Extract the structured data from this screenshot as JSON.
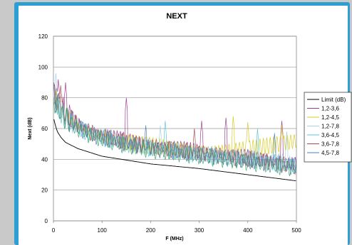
{
  "chart_data": {
    "type": "line",
    "title": "NEXT",
    "xlabel": "F (MHz)",
    "ylabel": "Next (dB)",
    "xlim": [
      0,
      500
    ],
    "ylim": [
      0,
      120
    ],
    "x_ticks": [
      "0",
      "100",
      "200",
      "300",
      "400",
      "500"
    ],
    "y_ticks": [
      "0",
      "20",
      "40",
      "60",
      "80",
      "100",
      "120"
    ],
    "grid": "horizontal",
    "legend_position": "right",
    "series": [
      {
        "name": "Limit (dB)",
        "color": "#000000",
        "kind": "limit",
        "x": [
          1,
          4,
          8,
          16,
          25,
          50,
          100,
          150,
          200,
          250,
          300,
          350,
          400,
          450,
          500
        ],
        "values": [
          66,
          62,
          58,
          54,
          51,
          47,
          42,
          39.5,
          37,
          35.5,
          34,
          32,
          30,
          28,
          26
        ]
      },
      {
        "name": "1,2-3,6",
        "color": "#9b3a8e",
        "kind": "meas",
        "x": [
          1,
          10,
          20,
          40,
          60,
          80,
          100,
          150,
          200,
          250,
          300,
          350,
          400,
          450,
          500
        ],
        "values": [
          85,
          76,
          73,
          66,
          61,
          58,
          56,
          52,
          49,
          47,
          45,
          43,
          41,
          39,
          37
        ],
        "peaks": [
          [
            10,
            92
          ],
          [
            25,
            90
          ],
          [
            150,
            80
          ],
          [
            305,
            65
          ],
          [
            355,
            67
          ],
          [
            470,
            65
          ]
        ]
      },
      {
        "name": "1,2-4,5",
        "color": "#d8c81c",
        "kind": "meas",
        "x": [
          1,
          10,
          20,
          40,
          60,
          80,
          100,
          150,
          200,
          250,
          300,
          350,
          400,
          450,
          500
        ],
        "values": [
          83,
          75,
          71,
          65,
          60,
          57,
          55,
          51,
          49,
          47,
          46,
          46,
          47,
          49,
          52
        ],
        "peaks": [
          [
            370,
            68
          ],
          [
            400,
            64
          ],
          [
            470,
            62
          ]
        ]
      },
      {
        "name": "1,2-7,8",
        "color": "#a8cfe0",
        "kind": "meas",
        "x": [
          1,
          10,
          20,
          40,
          60,
          80,
          100,
          150,
          200,
          250,
          300,
          350,
          400,
          450,
          500
        ],
        "values": [
          82,
          74,
          70,
          64,
          60,
          57,
          55,
          51,
          48,
          46,
          44,
          42,
          41,
          39,
          37
        ],
        "peaks": [
          [
            5,
            96
          ],
          [
            220,
            62
          ],
          [
            480,
            58
          ]
        ]
      },
      {
        "name": "3,6-4,5",
        "color": "#5cc4d6",
        "kind": "meas",
        "x": [
          1,
          10,
          20,
          40,
          60,
          80,
          100,
          150,
          200,
          250,
          300,
          350,
          400,
          450,
          500
        ],
        "values": [
          80,
          73,
          69,
          63,
          59,
          56,
          54,
          50,
          47,
          45,
          43,
          41,
          40,
          38,
          36
        ],
        "peaks": [
          [
            230,
            65
          ],
          [
            420,
            60
          ]
        ]
      },
      {
        "name": "3,6-7,8",
        "color": "#a24c50",
        "kind": "meas",
        "x": [
          1,
          10,
          20,
          40,
          60,
          80,
          100,
          150,
          200,
          250,
          300,
          350,
          400,
          450,
          500
        ],
        "values": [
          84,
          76,
          71,
          65,
          60,
          57,
          55,
          51,
          48,
          46,
          44,
          42,
          40,
          38,
          35
        ],
        "peaks": [
          [
            15,
            88
          ],
          [
            290,
            60
          ]
        ]
      },
      {
        "name": "4,5-7,8",
        "color": "#4a7fb5",
        "kind": "meas",
        "x": [
          1,
          10,
          20,
          40,
          60,
          80,
          100,
          150,
          200,
          250,
          300,
          350,
          400,
          450,
          500
        ],
        "values": [
          81,
          74,
          69,
          63,
          59,
          56,
          54,
          50,
          47,
          45,
          43,
          41,
          39,
          37,
          35
        ],
        "peaks": [
          [
            190,
            62
          ],
          [
            455,
            57
          ]
        ]
      },
      {
        "name": "",
        "color": "#3aa66a",
        "kind": "meas",
        "x": [
          1,
          10,
          20,
          40,
          60,
          80,
          100,
          150,
          200,
          250,
          300,
          350,
          400,
          450,
          500
        ],
        "values": [
          79,
          72,
          68,
          62,
          58,
          55,
          53,
          49,
          46,
          44,
          42,
          40,
          38,
          36,
          34
        ],
        "peaks": []
      }
    ]
  }
}
